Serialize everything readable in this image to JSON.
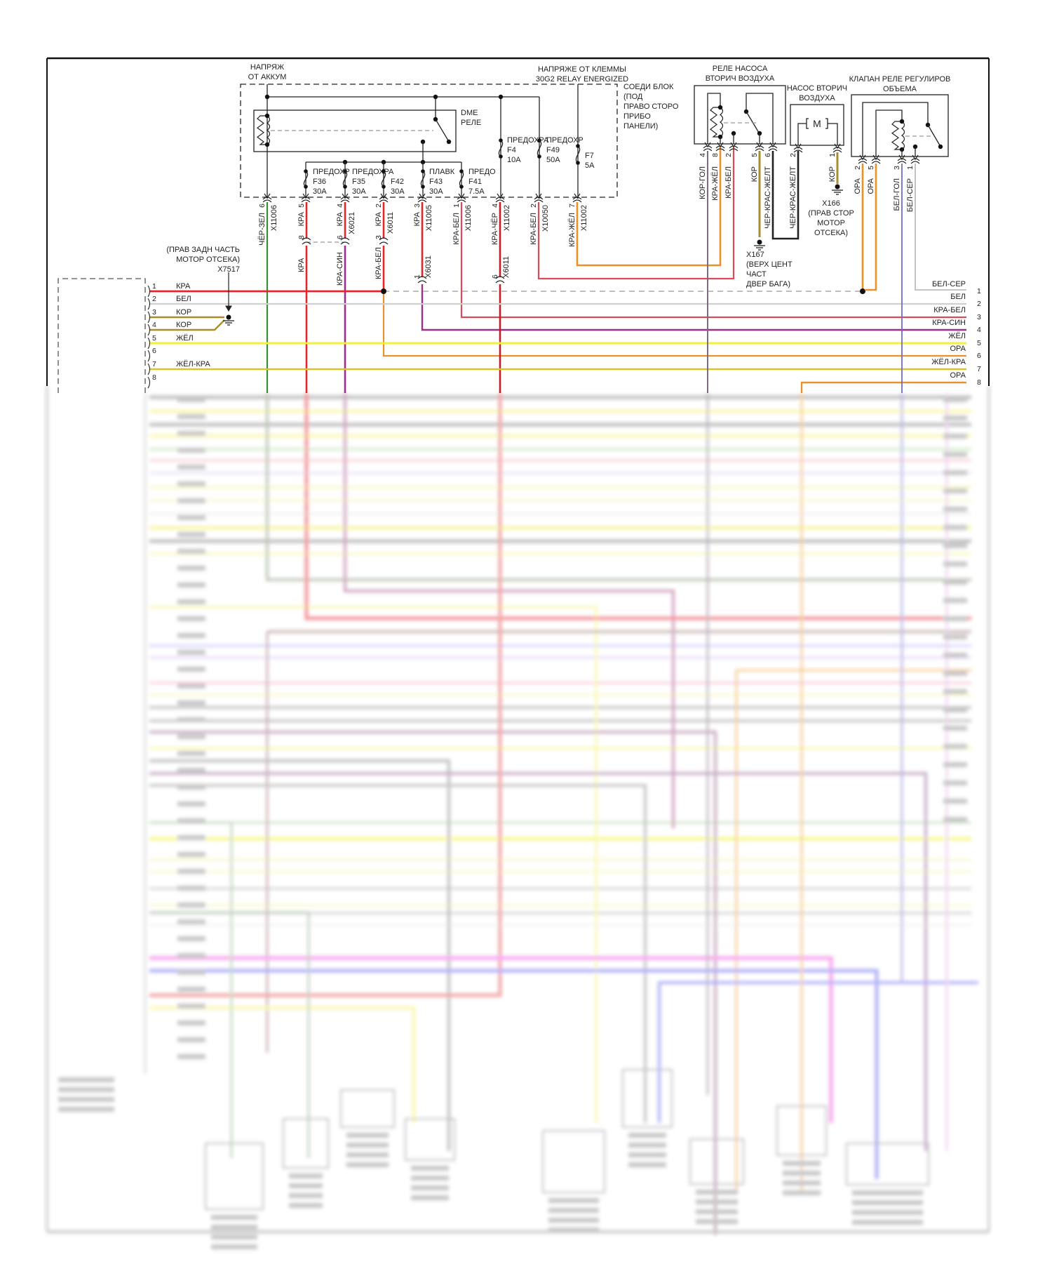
{
  "top_labels": {
    "battery_voltage": [
      "НАПРЯЖ",
      "ОТ АККУМ"
    ],
    "relay_voltage": [
      "НАПРЯЖЕ ОТ КЛЕММЫ",
      "30G2 RELAY ENERGIZED"
    ]
  },
  "fuse_block": {
    "title": [
      "СОЕДИ БЛОК",
      "(ПОД",
      "ПРАВО СТОРО",
      "ПРИБО",
      "ПАНЕЛИ)"
    ],
    "dme_relay": [
      "DME",
      "РЕЛЕ"
    ],
    "fuses": [
      {
        "name": "ПРЕДОХР",
        "id": "F36",
        "rating": "30A"
      },
      {
        "name": "ПРЕДОХРА",
        "id": "F35",
        "rating": "30A"
      },
      {
        "name": "",
        "id": "F42",
        "rating": "30A"
      },
      {
        "name": "ПЛАВК",
        "id": "F43",
        "rating": "30A"
      },
      {
        "name": "ПРЕДО",
        "id": "F41",
        "rating": "7.5A"
      },
      {
        "name": "ПРЕДОХРА",
        "id": "F4",
        "rating": "10A"
      },
      {
        "name": "ПРЕДОХР",
        "id": "F49",
        "rating": "50A"
      },
      {
        "name": "",
        "id": "F7",
        "rating": "5A"
      }
    ],
    "outputs": [
      {
        "color": "ЧЁР-ЗЕЛ",
        "pin": "6",
        "connector": "X11006"
      },
      {
        "color": "КРА",
        "pin": "5",
        "connector": ""
      },
      {
        "color": "КРА",
        "pin": "4",
        "connector": "X6021"
      },
      {
        "color": "КРА",
        "pin": "2",
        "connector": "X6011"
      },
      {
        "color": "КРА",
        "pin": "3",
        "connector": "X11005"
      },
      {
        "color": "КРА-БЕЛ",
        "pin": "1",
        "connector": "X11006"
      },
      {
        "color": "КРА-ЧЁР",
        "pin": "4",
        "connector": "X11002"
      },
      {
        "color": "КРА-БЕЛ",
        "pin": "2",
        "connector": "X10050"
      },
      {
        "color": "КРА-ЖЁЛ",
        "pin": "7",
        "connector": "X11002"
      }
    ],
    "inline_connectors": [
      {
        "pin": "8",
        "color": "КРА",
        "connector": ""
      },
      {
        "pin": "6",
        "color": "КРА-СИН",
        "connector": ""
      },
      {
        "pin": "3",
        "color": "КРА-БЕЛ",
        "connector": ""
      },
      {
        "pin": "1",
        "color": "",
        "connector": "X6031"
      },
      {
        "pin": "6",
        "color": "",
        "connector": "X6011"
      }
    ]
  },
  "ground_x7517": {
    "lines": [
      "(ПРАВ ЗАДН ЧАСТЬ",
      "МОТОР ОТСЕКА)",
      "X7517"
    ]
  },
  "left_connector": {
    "pins": [
      {
        "num": "1",
        "label": "КРА"
      },
      {
        "num": "2",
        "label": "БЕЛ"
      },
      {
        "num": "3",
        "label": "КОР"
      },
      {
        "num": "4",
        "label": "КОР"
      },
      {
        "num": "5",
        "label": "ЖЁЛ"
      },
      {
        "num": "6",
        "label": ""
      },
      {
        "num": "7",
        "label": "ЖЁЛ-КРА"
      },
      {
        "num": "8",
        "label": ""
      }
    ]
  },
  "right_connector": {
    "pins": [
      {
        "num": "1",
        "label": "БЕЛ-СЕР"
      },
      {
        "num": "2",
        "label": "БЕЛ"
      },
      {
        "num": "3",
        "label": "КРА-БЕЛ"
      },
      {
        "num": "4",
        "label": "КРА-СИН"
      },
      {
        "num": "5",
        "label": "ЖЁЛ"
      },
      {
        "num": "6",
        "label": "ОРА"
      },
      {
        "num": "7",
        "label": "ЖЁЛ-КРА"
      },
      {
        "num": "8",
        "label": "ОРА"
      }
    ]
  },
  "air_pump_relay": {
    "title": [
      "РЕЛЕ НАСОСА",
      "ВТОРИЧ ВОЗДУХА"
    ],
    "pins": [
      {
        "pin": "4",
        "color": "КОР-ГОЛ"
      },
      {
        "pin": "8",
        "color": "КРА-ЖЁЛ"
      },
      {
        "pin": "2",
        "color": "КРА-БЕЛ"
      },
      {
        "pin": "5",
        "color": "КОР"
      },
      {
        "pin": "6",
        "color": "ЧЕР-КРАС-ЖЕЛТ"
      }
    ]
  },
  "ground_x167": {
    "lines": [
      "X167",
      "(ВЕРХ ЦЕНТ",
      "ЧАСТ",
      "ДВЕР БАГА)"
    ]
  },
  "air_pump": {
    "title": [
      "НАСОС ВТОРИЧ",
      "ВОЗДУХА"
    ],
    "motor_symbol": "M",
    "pins": [
      {
        "pin": "2",
        "color": "ЧЕР-КРАС-ЖЕЛТ"
      },
      {
        "pin": "1",
        "color": "КОР"
      }
    ]
  },
  "ground_x166": {
    "lines": [
      "X166",
      "(ПРАВ СТОР",
      "МОТОР",
      "ОТСЕКА)"
    ]
  },
  "volume_valve_relay": {
    "title": [
      "КЛАПАН РЕЛЕ РЕГУЛИРОВ",
      "ОБЪЕМА"
    ],
    "pins": [
      {
        "pin": "2",
        "color": "ОРА"
      },
      {
        "pin": "5",
        "color": "ОРА"
      },
      {
        "pin": "3",
        "color": "БЕЛ-ГОЛ"
      },
      {
        "pin": "1",
        "color": "БЕЛ-СЕР"
      }
    ]
  },
  "wire_colors": {
    "red": "#e4252b",
    "green": "#3a8a3a",
    "red_blue": "#9c2f86",
    "red_white": "#dc4a58",
    "red_black": "#c11e28",
    "red_yellow": "#e8902a",
    "white": "#cfcfcf",
    "brown": "#a88e2e",
    "yellow": "#f4ef3a",
    "yellow_red": "#d6c62a",
    "orange": "#e8922a",
    "brown_blue": "#7b6b80",
    "white_blue": "#6d6dc4",
    "white_gray": "#c4c4c4",
    "black": "#222222"
  }
}
